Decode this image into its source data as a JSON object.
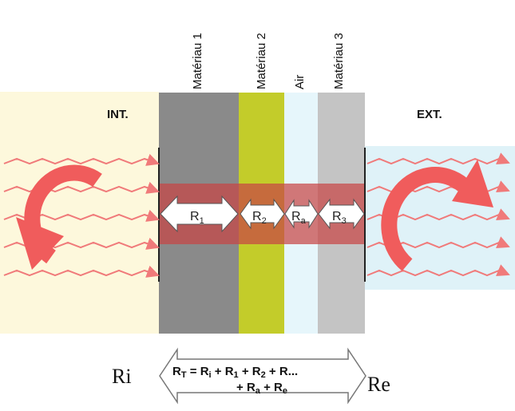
{
  "materials": [
    {
      "key": "mat1",
      "label": "Matériau 1",
      "color": "#8a8a8a"
    },
    {
      "key": "mat2",
      "label": "Matériau 2",
      "color": "#c3cc2a"
    },
    {
      "key": "air",
      "label": "Air",
      "color": "#e6f6fb"
    },
    {
      "key": "mat3",
      "label": "Matériau 3",
      "color": "#c4c4c4"
    }
  ],
  "sides": {
    "interior": {
      "label": "INT.",
      "color": "#fdf8dc"
    },
    "exterior": {
      "label": "EXT.",
      "color": "#dff2f8"
    }
  },
  "resistances": {
    "r1": {
      "base": "R",
      "sub": "1"
    },
    "r2": {
      "base": "R",
      "sub": "2"
    },
    "ra": {
      "base": "R",
      "sub": "a"
    },
    "r3": {
      "base": "R",
      "sub": "3"
    }
  },
  "surface_resistances": {
    "ri": "Ri",
    "re": "Re"
  },
  "formula": {
    "total": "R",
    "total_sub": "T",
    "eq": " = ",
    "ri_base": "R",
    "ri_sub": "i",
    "r1_base": "R",
    "r1_sub": "1",
    "r2_base": "R",
    "r2_sub": "2",
    "rdots": "R...",
    "ra_base": "R",
    "ra_sub": "a",
    "re_base": "R",
    "re_sub": "e",
    "plus": " + "
  },
  "colors": {
    "band": "#c84545",
    "heat": "#f07a7a",
    "arrow": "#f05c5c"
  }
}
